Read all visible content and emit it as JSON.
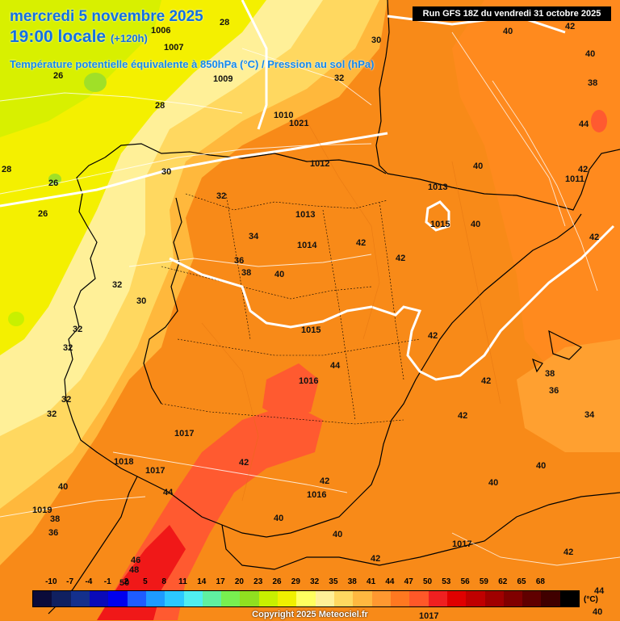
{
  "header": {
    "date_line": "mercredi 5 novembre 2025",
    "time_line": "19:00 locale",
    "lead_time": "(+120h)",
    "subtitle": "Température potentielle équivalente à 850hPa (°C) / Pression au sol (hPa)",
    "run_info": "Run GFS 18Z du vendredi 31 octobre 2025"
  },
  "legend": {
    "unit": "(°C)",
    "ticks": [
      "-10",
      "-7",
      "-4",
      "-1",
      "2",
      "5",
      "8",
      "11",
      "14",
      "17",
      "20",
      "23",
      "26",
      "29",
      "32",
      "35",
      "38",
      "41",
      "44",
      "47",
      "50",
      "53",
      "56",
      "59",
      "62",
      "65",
      "68"
    ],
    "colors": [
      "#0b0b3a",
      "#102060",
      "#14308c",
      "#0a0ab8",
      "#0000ee",
      "#1e5cff",
      "#1e9bff",
      "#2cc8ff",
      "#50eef0",
      "#60f0a0",
      "#78f050",
      "#90e020",
      "#c8f000",
      "#f0f000",
      "#ffff60",
      "#fff098",
      "#ffd860",
      "#ffb840",
      "#ff9830",
      "#ff7820",
      "#ff5828",
      "#f02020",
      "#e00000",
      "#c00000",
      "#a00000",
      "#800000",
      "#600000",
      "#400000",
      "#000000"
    ]
  },
  "copyright": "Copyright 2025 Meteociel.fr",
  "map_labels": {
    "temperature": [
      {
        "v": "28"
      },
      {
        "v": "30"
      },
      {
        "v": "32"
      },
      {
        "v": "26"
      },
      {
        "v": "28"
      },
      {
        "v": "28"
      },
      {
        "v": "26"
      },
      {
        "v": "26"
      },
      {
        "v": "30"
      },
      {
        "v": "32"
      },
      {
        "v": "34"
      },
      {
        "v": "36"
      },
      {
        "v": "38"
      },
      {
        "v": "40"
      },
      {
        "v": "32"
      },
      {
        "v": "30"
      },
      {
        "v": "32"
      },
      {
        "v": "32"
      },
      {
        "v": "32"
      },
      {
        "v": "32"
      },
      {
        "v": "40"
      },
      {
        "v": "42"
      },
      {
        "v": "40"
      },
      {
        "v": "40"
      },
      {
        "v": "38"
      },
      {
        "v": "44"
      },
      {
        "v": "40"
      },
      {
        "v": "42"
      },
      {
        "v": "42"
      },
      {
        "v": "42"
      },
      {
        "v": "42"
      },
      {
        "v": "42"
      },
      {
        "v": "44"
      },
      {
        "v": "42"
      },
      {
        "v": "42"
      },
      {
        "v": "38"
      },
      {
        "v": "36"
      },
      {
        "v": "34"
      },
      {
        "v": "42"
      },
      {
        "v": "40"
      },
      {
        "v": "42"
      },
      {
        "v": "40"
      },
      {
        "v": "44"
      },
      {
        "v": "40"
      },
      {
        "v": "38"
      },
      {
        "v": "36"
      },
      {
        "v": "40"
      },
      {
        "v": "40"
      },
      {
        "v": "42"
      },
      {
        "v": "42"
      },
      {
        "v": "46"
      },
      {
        "v": "48"
      },
      {
        "v": "50"
      },
      {
        "v": "44"
      },
      {
        "v": "40"
      }
    ],
    "pressure": [
      {
        "v": "1006"
      },
      {
        "v": "1007"
      },
      {
        "v": "1009"
      },
      {
        "v": "1010"
      },
      {
        "v": "1021"
      },
      {
        "v": "1012"
      },
      {
        "v": "1013"
      },
      {
        "v": "1013"
      },
      {
        "v": "1014"
      },
      {
        "v": "1015"
      },
      {
        "v": "1015"
      },
      {
        "v": "1016"
      },
      {
        "v": "1017"
      },
      {
        "v": "1018"
      },
      {
        "v": "1017"
      },
      {
        "v": "1019"
      },
      {
        "v": "1016"
      },
      {
        "v": "1017"
      },
      {
        "v": "1017"
      },
      {
        "v": "1011"
      }
    ]
  }
}
